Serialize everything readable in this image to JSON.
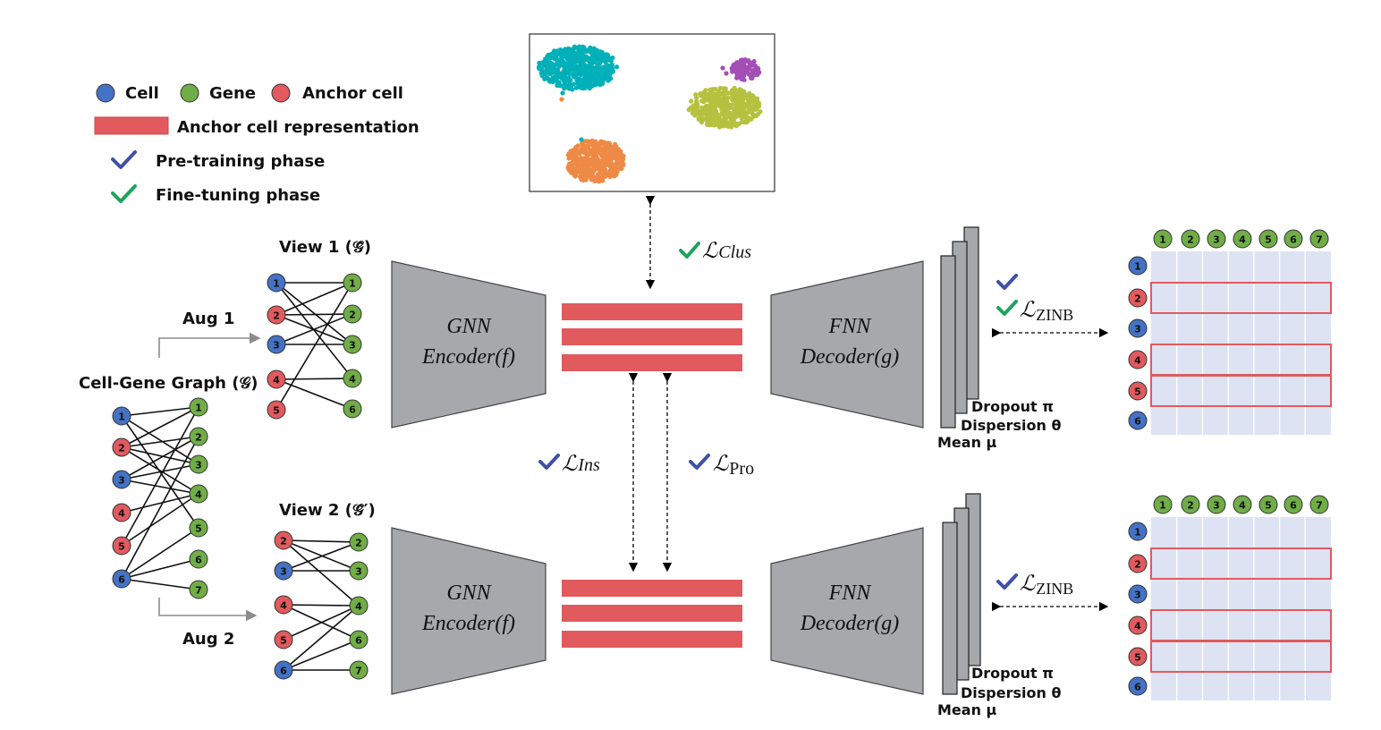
{
  "legend": {
    "cell": "Cell",
    "gene": "Gene",
    "anchor_cell": "Anchor cell",
    "anchor_repr": "Anchor cell representation",
    "pretrain": "Pre-training phase",
    "finetune": "Fine-tuning phase"
  },
  "colors": {
    "cell": "#4472c4",
    "gene": "#70ad47",
    "anchor": "#e05a5e",
    "encoder": "#a6a8ab",
    "repr_bar": "#e05a5e",
    "check_pretrain": "#3f51a5",
    "check_finetune": "#1ea35c",
    "matrix_cell": "#dde3f2"
  },
  "graph": {
    "title": "Cell-Gene Graph (𝒢)",
    "cells": [
      "1",
      "2",
      "3",
      "4",
      "5",
      "6"
    ],
    "genes": [
      "1",
      "2",
      "3",
      "4",
      "5",
      "6",
      "7"
    ]
  },
  "view1": {
    "title": "View 1 (𝒢̃)",
    "aug": "Aug 1",
    "cells": [
      "1",
      "2",
      "3",
      "4",
      "5"
    ],
    "genes": [
      "1",
      "2",
      "3",
      "4",
      "6"
    ]
  },
  "view2": {
    "title": "View 2 (𝒢̃′)",
    "aug": "Aug 2",
    "cells": [
      "2",
      "3",
      "4",
      "5",
      "6"
    ],
    "genes": [
      "2",
      "3",
      "4",
      "6",
      "7"
    ]
  },
  "encoder": {
    "line1": "GNN",
    "line2": "Encoder(f)"
  },
  "decoder": {
    "line1": "FNN",
    "line2": "Decoder(g)"
  },
  "losses": {
    "clus": "ℒClus",
    "ins": "ℒIns",
    "pro": "ℒPro",
    "zinb": "ℒZINB"
  },
  "outputs": {
    "dropout": "Dropout π",
    "dispersion": "Dispersion θ",
    "mean": "Mean μ"
  },
  "matrix": {
    "gene_header": [
      "1",
      "2",
      "3",
      "4",
      "5",
      "6",
      "7"
    ],
    "cells": [
      "1",
      "2",
      "3",
      "4",
      "5",
      "6"
    ],
    "anchor_rows": [
      "2",
      "4",
      "5"
    ]
  },
  "scatter_clusters": [
    {
      "name": "teal",
      "color": "#00b0b8"
    },
    {
      "name": "yellow-green",
      "color": "#b5c23f"
    },
    {
      "name": "orange",
      "color": "#ee8a45"
    },
    {
      "name": "purple",
      "color": "#a44fb5"
    }
  ]
}
